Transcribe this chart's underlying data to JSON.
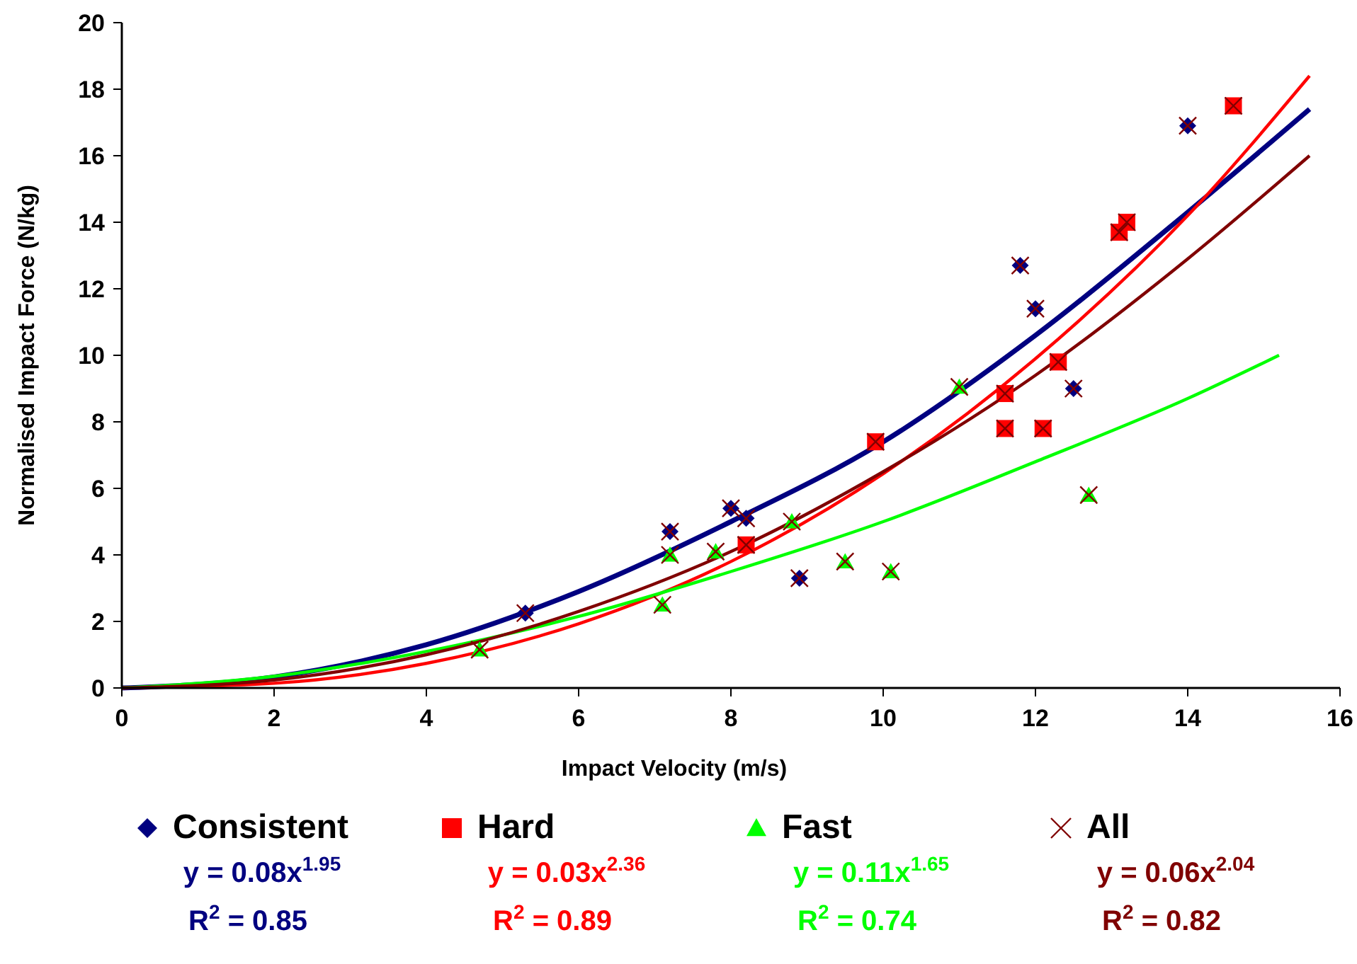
{
  "chart_data": {
    "type": "scatter",
    "xlabel": "Impact Velocity (m/s)",
    "ylabel": "Normalised Impact Force (N/kg)",
    "xlim": [
      0,
      16
    ],
    "xticks": [
      0,
      2,
      4,
      6,
      8,
      10,
      12,
      14,
      16
    ],
    "ylim": [
      0,
      20
    ],
    "yticks": [
      0,
      2,
      4,
      6,
      8,
      10,
      12,
      14,
      16,
      18,
      20
    ],
    "grid": false,
    "legend": "bottom",
    "series": [
      {
        "name": "Consistent",
        "color": "#000080",
        "marker": "diamond",
        "x": [
          5.3,
          7.2,
          8.0,
          8.2,
          8.9,
          11.8,
          12.0,
          12.5,
          14.0
        ],
        "values": [
          2.25,
          4.7,
          5.4,
          5.1,
          3.3,
          12.7,
          11.4,
          9.0,
          16.9
        ]
      },
      {
        "name": "Hard",
        "color": "#ff0000",
        "marker": "square",
        "x": [
          8.2,
          9.9,
          11.6,
          11.6,
          12.1,
          12.3,
          13.1,
          13.2,
          14.6
        ],
        "values": [
          4.3,
          7.4,
          8.85,
          7.8,
          7.8,
          9.8,
          13.7,
          14.0,
          17.5
        ]
      },
      {
        "name": "Fast",
        "color": "#00ff00",
        "marker": "triangle",
        "x": [
          4.7,
          7.1,
          7.2,
          7.8,
          8.8,
          9.5,
          10.1,
          11.0,
          12.7
        ],
        "values": [
          1.15,
          2.5,
          4.0,
          4.1,
          5.0,
          3.8,
          3.5,
          9.05,
          5.8
        ]
      },
      {
        "name": "All",
        "color": "#800000",
        "marker": "cross",
        "x": [
          5.3,
          7.2,
          8.0,
          8.2,
          8.9,
          11.8,
          12.0,
          12.5,
          14.0,
          8.2,
          9.9,
          11.6,
          11.6,
          12.1,
          12.3,
          13.1,
          13.2,
          14.6,
          4.7,
          7.1,
          7.2,
          7.8,
          8.8,
          9.5,
          10.1,
          11.0,
          12.7
        ],
        "values": [
          2.25,
          4.7,
          5.4,
          5.1,
          3.3,
          12.7,
          11.4,
          9.0,
          16.9,
          4.3,
          7.4,
          8.85,
          7.8,
          7.8,
          9.8,
          13.7,
          14.0,
          17.5,
          1.15,
          2.5,
          4.0,
          4.1,
          5.0,
          3.8,
          3.5,
          9.05,
          5.8
        ]
      },
      {
        "type": "line",
        "color": "#000080",
        "marker": "none",
        "x": [
          0,
          2,
          4,
          6,
          8,
          10,
          12,
          14,
          15.6
        ],
        "values": [
          0,
          0.33,
          1.3,
          2.9,
          5.0,
          7.4,
          10.6,
          14.3,
          17.4
        ]
      },
      {
        "type": "line",
        "color": "#ff0000",
        "marker": "none",
        "x": [
          0,
          2,
          4,
          6,
          8,
          10,
          12,
          14,
          15.6
        ],
        "values": [
          0,
          0.14,
          0.74,
          1.93,
          3.8,
          6.44,
          9.9,
          14.2,
          18.4
        ]
      },
      {
        "type": "line",
        "color": "#00ff00",
        "marker": "none",
        "x": [
          0,
          2,
          4,
          6,
          8,
          10,
          12,
          14,
          15.2
        ],
        "values": [
          0,
          0.35,
          1.1,
          2.15,
          3.5,
          5.0,
          6.8,
          8.7,
          10.0
        ]
      },
      {
        "type": "line",
        "color": "#800000",
        "marker": "none",
        "x": [
          0,
          2,
          4,
          6,
          8,
          10,
          12,
          14,
          15.6
        ],
        "values": [
          0,
          0.24,
          1.0,
          2.3,
          4.1,
          6.5,
          9.4,
          12.9,
          16.0
        ]
      }
    ],
    "annotations": [
      "y = 0.08x$^{1.95}$",
      "R$^{2}$ = 0.85",
      "y = 0.03x$^{2.36}$",
      "R$^{2}$ = 0.89",
      "y = 0.11x$^{1.65}$",
      "R$^{2}$ = 0.74",
      "y = 0.06x$^{2.04}$",
      "R$^{2}$ = 0.82"
    ]
  }
}
